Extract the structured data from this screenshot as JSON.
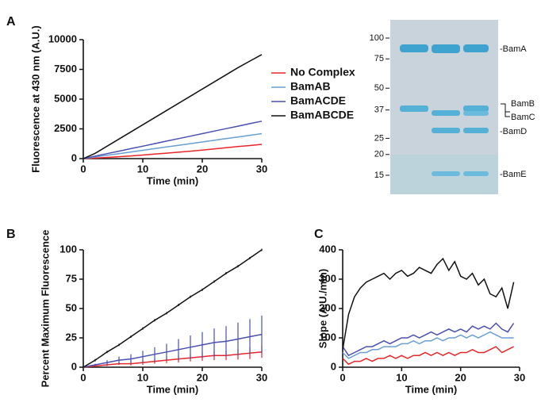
{
  "chart_data": [
    {
      "type": "line",
      "panel_label": "A",
      "xlabel": "Time (min)",
      "ylabel": "Fluorescence at 430 nm (A.U.)",
      "xlim": [
        0,
        30
      ],
      "xticks": [
        0,
        10,
        20,
        30
      ],
      "ylim": [
        0,
        10000
      ],
      "yticks": [
        0,
        2500,
        5000,
        7500,
        10000
      ],
      "x": [
        0,
        2,
        4,
        6,
        8,
        10,
        12,
        14,
        16,
        18,
        20,
        22,
        24,
        26,
        28,
        30
      ],
      "series": [
        {
          "name": "No Complex",
          "color": "#e8262a",
          "values": [
            0,
            40,
            100,
            160,
            230,
            300,
            380,
            460,
            540,
            630,
            720,
            810,
            910,
            1010,
            1100,
            1200
          ]
        },
        {
          "name": "BamAB",
          "color": "#6a9fd4",
          "values": [
            0,
            140,
            280,
            420,
            560,
            700,
            840,
            980,
            1120,
            1260,
            1400,
            1540,
            1680,
            1820,
            1960,
            2100
          ]
        },
        {
          "name": "BamACDE",
          "color": "#4a50b0",
          "values": [
            0,
            210,
            420,
            630,
            840,
            1050,
            1260,
            1470,
            1680,
            1890,
            2100,
            2310,
            2520,
            2730,
            2940,
            3150
          ]
        },
        {
          "name": "BamABCDE",
          "color": "#111111",
          "values": [
            0,
            450,
            1050,
            1650,
            2250,
            2850,
            3450,
            4050,
            4650,
            5250,
            5850,
            6450,
            7050,
            7650,
            8200,
            8750
          ]
        }
      ],
      "legend": "right"
    },
    {
      "type": "line",
      "panel_label": "B",
      "xlabel": "Time (min)",
      "ylabel": "Percent Maximum Fluorescence",
      "xlim": [
        0,
        30
      ],
      "xticks": [
        0,
        10,
        20,
        30
      ],
      "ylim": [
        0,
        100
      ],
      "yticks": [
        0,
        25,
        50,
        75,
        100
      ],
      "x": [
        0,
        2,
        4,
        6,
        8,
        10,
        12,
        14,
        16,
        18,
        20,
        22,
        24,
        26,
        28,
        30
      ],
      "series": [
        {
          "color": "#e8262a",
          "values": [
            0,
            1,
            2,
            3,
            3,
            4,
            5,
            6,
            7,
            8,
            9,
            10,
            10,
            11,
            12,
            13
          ],
          "errors": [
            0,
            0.5,
            1,
            1,
            1.5,
            2,
            2,
            2.5,
            3,
            3,
            3.5,
            4,
            4,
            4.5,
            5,
            5
          ]
        },
        {
          "color": "#4a50b0",
          "values": [
            0,
            2,
            4,
            6,
            7,
            9,
            11,
            13,
            15,
            17,
            19,
            21,
            22,
            24,
            26,
            28
          ],
          "errors": [
            0,
            1,
            2,
            3,
            4,
            5,
            6,
            7,
            9,
            10,
            11,
            12,
            13,
            14,
            15,
            16
          ]
        },
        {
          "color": "#111111",
          "values": [
            0,
            6,
            13,
            19,
            26,
            33,
            40,
            46,
            53,
            60,
            66,
            73,
            80,
            86,
            93,
            100
          ],
          "errors": [
            0,
            1,
            1,
            1,
            1,
            1,
            1,
            1,
            1,
            1,
            1,
            1,
            1,
            1,
            1,
            1
          ]
        }
      ]
    },
    {
      "type": "line",
      "panel_label": "C",
      "xlabel": "Time (min)",
      "ylabel": "Slope (A.U./min)",
      "xlim": [
        0,
        30
      ],
      "xticks": [
        0,
        10,
        20,
        30
      ],
      "ylim": [
        0,
        400
      ],
      "yticks": [
        0,
        100,
        200,
        300,
        400
      ],
      "x": [
        0,
        1,
        2,
        3,
        4,
        5,
        6,
        7,
        8,
        9,
        10,
        11,
        12,
        13,
        14,
        15,
        16,
        17,
        18,
        19,
        20,
        21,
        22,
        23,
        24,
        25,
        26,
        27,
        28,
        29
      ],
      "series": [
        {
          "color": "#e8262a",
          "values": [
            30,
            10,
            20,
            20,
            30,
            20,
            30,
            30,
            40,
            30,
            40,
            30,
            40,
            40,
            50,
            40,
            50,
            40,
            50,
            40,
            50,
            50,
            60,
            50,
            50,
            60,
            70,
            50,
            60,
            70
          ]
        },
        {
          "color": "#6a9fd4",
          "values": [
            50,
            30,
            40,
            50,
            50,
            60,
            60,
            70,
            70,
            70,
            80,
            80,
            90,
            80,
            90,
            90,
            100,
            90,
            100,
            100,
            110,
            100,
            110,
            100,
            110,
            120,
            110,
            100,
            100,
            100
          ]
        },
        {
          "color": "#4a50b0",
          "values": [
            70,
            40,
            50,
            60,
            70,
            70,
            80,
            90,
            80,
            90,
            100,
            100,
            110,
            100,
            110,
            120,
            110,
            120,
            130,
            120,
            130,
            120,
            140,
            130,
            140,
            130,
            150,
            130,
            120,
            150
          ]
        },
        {
          "color": "#111111",
          "values": [
            60,
            180,
            240,
            270,
            290,
            300,
            310,
            320,
            300,
            320,
            330,
            310,
            320,
            340,
            330,
            320,
            350,
            370,
            330,
            360,
            310,
            300,
            320,
            280,
            300,
            250,
            240,
            270,
            200,
            290
          ]
        }
      ]
    }
  ],
  "gel": {
    "marker_labels": [
      100,
      75,
      50,
      37,
      25,
      20,
      15
    ],
    "band_labels": [
      "-BamA",
      "BamB",
      "BamC",
      "-BamD",
      "-BamE"
    ]
  }
}
